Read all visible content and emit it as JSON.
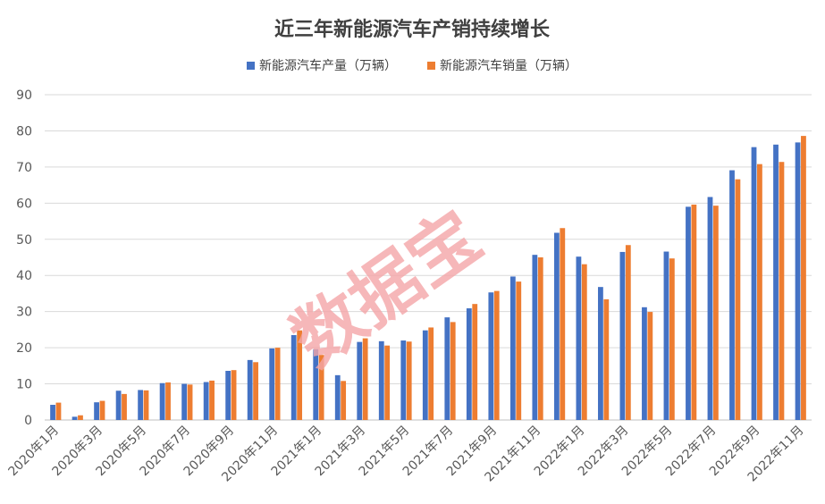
{
  "chart_data": {
    "type": "bar",
    "title": "近三年新能源汽车产销持续增长",
    "xlabel": "",
    "ylabel": "",
    "ylim": [
      0,
      90
    ],
    "yticks": [
      0,
      10,
      20,
      30,
      40,
      50,
      60,
      70,
      80,
      90
    ],
    "grid": true,
    "legend_position": "top",
    "categories": [
      "2020年1月",
      "2020年2月",
      "2020年3月",
      "2020年4月",
      "2020年5月",
      "2020年6月",
      "2020年7月",
      "2020年8月",
      "2020年9月",
      "2020年10月",
      "2020年11月",
      "2020年12月",
      "2021年1月",
      "2021年2月",
      "2021年3月",
      "2021年4月",
      "2021年5月",
      "2021年6月",
      "2021年7月",
      "2021年8月",
      "2021年9月",
      "2021年10月",
      "2021年11月",
      "2021年12月",
      "2022年1月",
      "2022年2月",
      "2022年3月",
      "2022年4月",
      "2022年5月",
      "2022年6月",
      "2022年7月",
      "2022年8月",
      "2022年9月",
      "2022年10月",
      "2022年11月"
    ],
    "x_tick_labels": [
      "2020年1月",
      "2020年3月",
      "2020年5月",
      "2020年7月",
      "2020年9月",
      "2020年11月",
      "2021年1月",
      "2021年3月",
      "2021年5月",
      "2021年7月",
      "2021年9月",
      "2021年11月",
      "2022年1月",
      "2022年3月",
      "2022年5月",
      "2022年7月",
      "2022年9月",
      "2022年11月"
    ],
    "series": [
      {
        "name": "新能源汽车产量（万辆）",
        "color": "#4472c4",
        "values": [
          4.2,
          0.9,
          4.9,
          8.1,
          8.3,
          10.2,
          10.0,
          10.5,
          13.6,
          16.6,
          19.8,
          23.5,
          19.6,
          12.4,
          21.6,
          21.8,
          22.0,
          24.8,
          28.4,
          30.9,
          35.3,
          39.7,
          45.7,
          51.8,
          45.2,
          36.8,
          46.5,
          31.2,
          46.6,
          59.0,
          61.7,
          69.1,
          75.5,
          76.2,
          76.8
        ]
      },
      {
        "name": "新能源汽车销量（万辆）",
        "color": "#ed7d31",
        "values": [
          4.8,
          1.3,
          5.3,
          7.2,
          8.2,
          10.4,
          9.8,
          10.9,
          13.8,
          16.0,
          20.0,
          24.8,
          18.0,
          10.8,
          22.6,
          20.6,
          21.7,
          25.6,
          27.1,
          32.1,
          35.7,
          38.3,
          45.0,
          53.1,
          43.1,
          33.4,
          48.4,
          29.9,
          44.7,
          59.6,
          59.3,
          66.6,
          70.8,
          71.4,
          78.6
        ]
      }
    ]
  },
  "watermark": {
    "text": "数据宝"
  }
}
